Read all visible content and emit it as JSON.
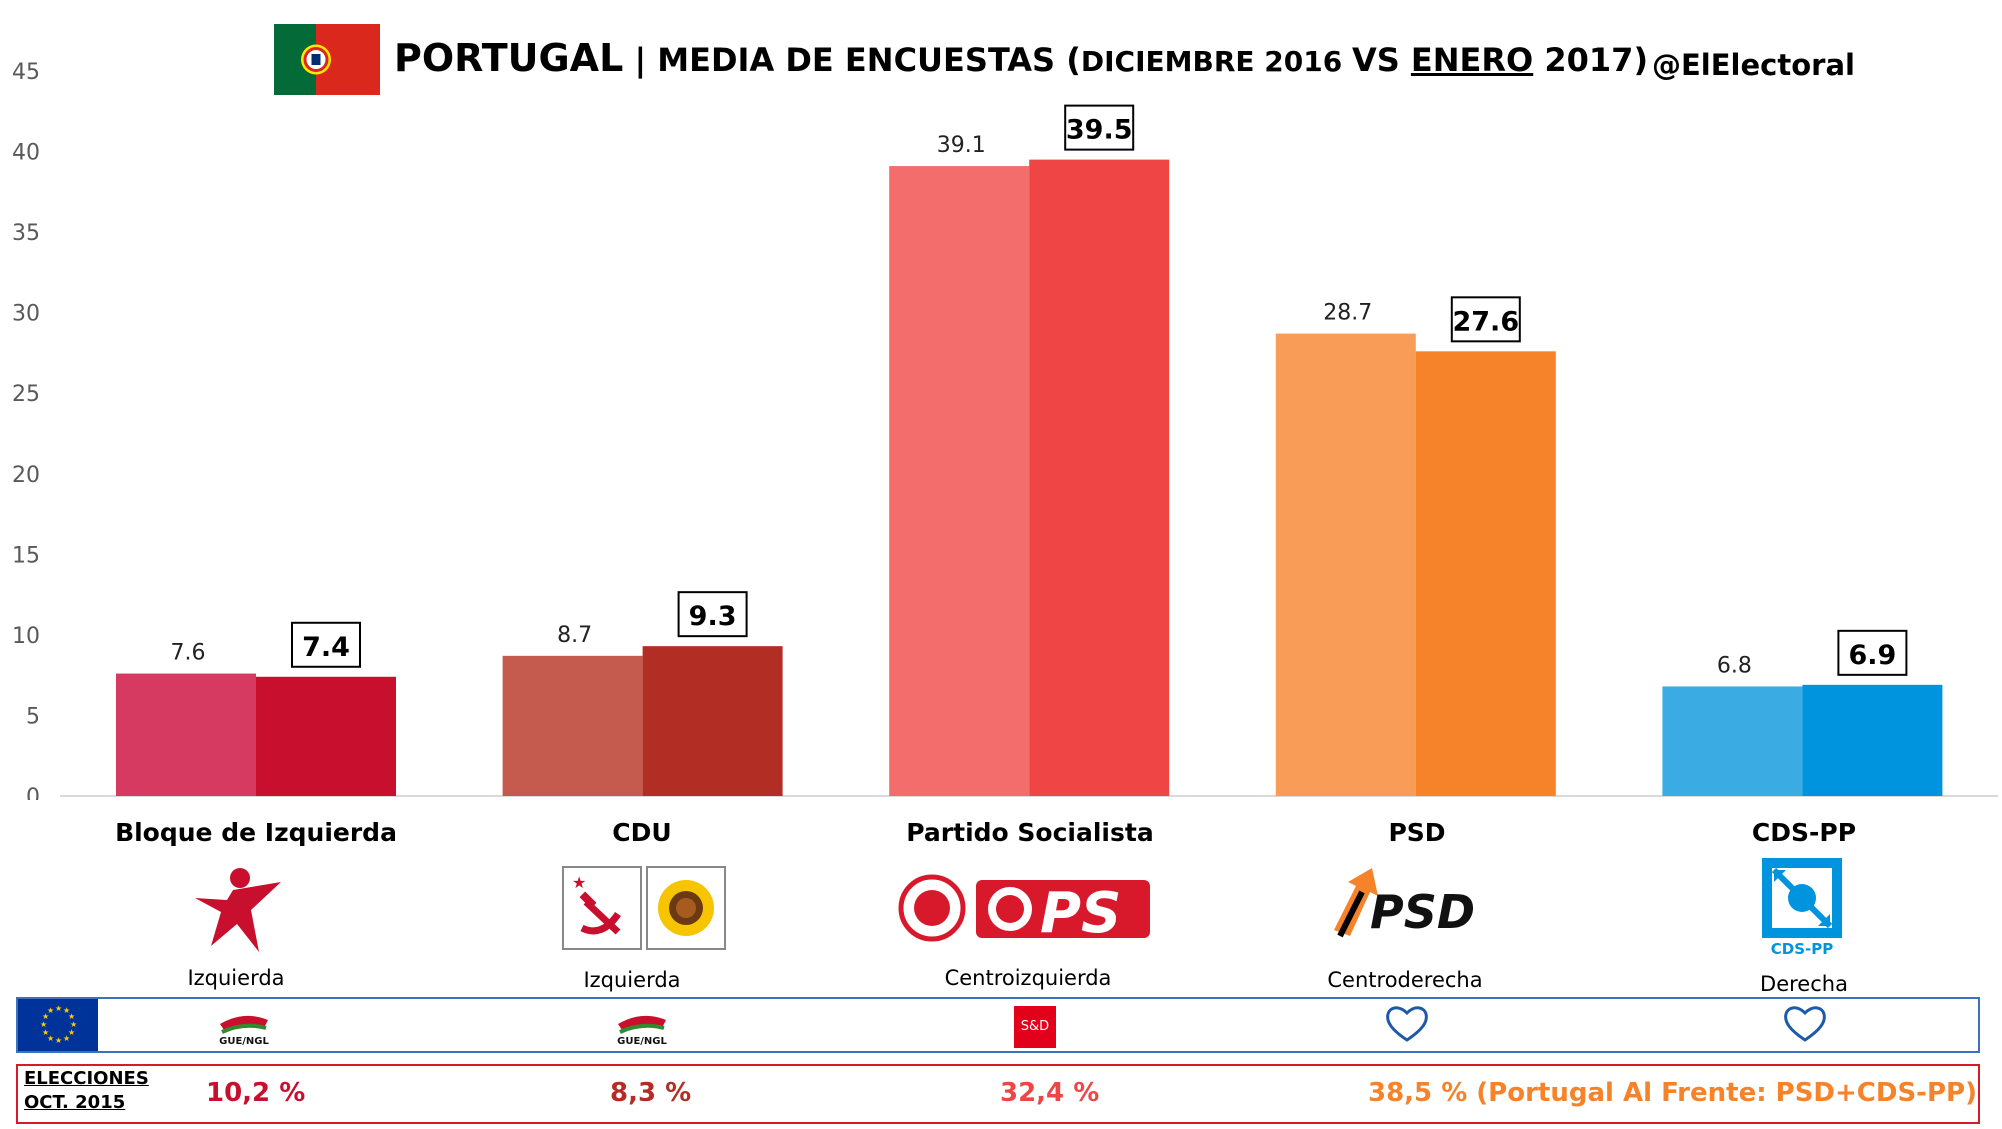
{
  "title": {
    "main": "PORTUGAL",
    "sep": " | ",
    "sub": "MEDIA DE ENCUESTAS ",
    "paren_open": "(",
    "small1": "DICIEMBRE 2016 ",
    "vs": "VS ",
    "enero": "ENERO",
    "year": " 2017",
    "paren_close": ")"
  },
  "handle": "@ElElectoral",
  "chart_data": {
    "type": "bar",
    "categories": [
      "Bloque de Izquierda",
      "CDU",
      "Partido Socialista",
      "PSD",
      "CDS-PP"
    ],
    "series": [
      {
        "values": [
          7.6,
          8.7,
          39.1,
          28.7,
          6.8
        ]
      },
      {
        "values": [
          7.4,
          9.3,
          39.5,
          27.6,
          6.9
        ]
      }
    ],
    "ylim": [
      0,
      45
    ],
    "yticks": [
      0,
      5,
      10,
      15,
      20,
      25,
      30,
      35,
      40,
      45
    ],
    "grid": false,
    "colors": {
      "prev": [
        "#d63a60",
        "#c55a4e",
        "#f36d6c",
        "#f89c57",
        "#3aabe3"
      ],
      "curr": [
        "#c8102e",
        "#b22e25",
        "#ef4645",
        "#f6822a",
        "#0094de"
      ]
    }
  },
  "parties": [
    {
      "ideology": "Izquierda",
      "eu_group": "GUE/NGL"
    },
    {
      "ideology": "Izquierda",
      "eu_group": "GUE/NGL"
    },
    {
      "ideology": "Centroizquierda",
      "eu_group": "S&D"
    },
    {
      "ideology": "Centroderecha",
      "eu_group": "EPP"
    },
    {
      "ideology": "Derecha",
      "eu_group": "EPP"
    }
  ],
  "logos": {
    "ps": "PS",
    "psd": "PSD",
    "cds": "CDS-PP"
  },
  "elections": {
    "label_line1": "ELECCIONES",
    "label_line2": "OCT. 2015",
    "values": [
      "10,2 %",
      "8,3 %",
      "32,4 %",
      "38,5 % (Portugal Al Frente: PSD+CDS-PP)"
    ],
    "colors": [
      "#c8102e",
      "#b22e25",
      "#ef4645",
      "#f6822a"
    ]
  }
}
